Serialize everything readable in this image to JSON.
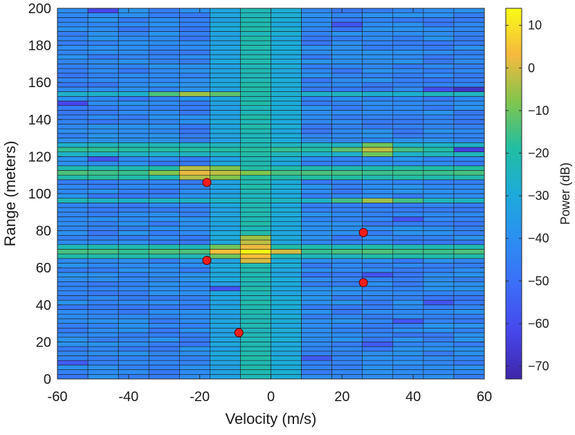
{
  "chart_data": {
    "type": "heatmap",
    "title": "",
    "xlabel": "Velocity (m/s)",
    "ylabel": "Range (meters)",
    "xlim": [
      -60,
      60
    ],
    "ylim": [
      0,
      200
    ],
    "x_ticks": [
      -60,
      -40,
      -20,
      0,
      20,
      40,
      60
    ],
    "y_ticks": [
      0,
      20,
      40,
      60,
      80,
      100,
      120,
      140,
      160,
      180,
      200
    ],
    "velocity_bins": 14,
    "range_bins": 80,
    "colorbar": {
      "label": "Power (dB)",
      "range": [
        -73,
        14
      ],
      "ticks": [
        10,
        0,
        -10,
        -20,
        -30,
        -40,
        -50,
        -60,
        -70
      ]
    },
    "targets": [
      {
        "velocity": -18,
        "range": 106
      },
      {
        "velocity": -18,
        "range": 64
      },
      {
        "velocity": -9,
        "range": 25
      },
      {
        "velocity": 26,
        "range": 79
      },
      {
        "velocity": 26,
        "range": 52
      }
    ],
    "background_level_db": -43,
    "bright_cells": [
      {
        "row": 27,
        "col": 6,
        "db": 14
      },
      {
        "row": 27,
        "col": 5,
        "db": 4
      },
      {
        "row": 27,
        "col": 7,
        "db": 0
      },
      {
        "row": 26,
        "col": 6,
        "db": 4
      },
      {
        "row": 28,
        "col": 6,
        "db": 2
      },
      {
        "row": 25,
        "col": 6,
        "db": 0
      },
      {
        "row": 29,
        "col": 6,
        "db": -2
      },
      {
        "row": 30,
        "col": 6,
        "db": -5
      },
      {
        "row": 26,
        "col": 5,
        "db": -10
      },
      {
        "row": 28,
        "col": 5,
        "db": -10
      },
      {
        "row": 43,
        "col": 4,
        "db": -3
      },
      {
        "row": 44,
        "col": 4,
        "db": 2
      },
      {
        "row": 45,
        "col": 4,
        "db": -3
      },
      {
        "row": 44,
        "col": 5,
        "db": -2
      },
      {
        "row": 43,
        "col": 5,
        "db": -8
      },
      {
        "row": 45,
        "col": 5,
        "db": -8
      },
      {
        "row": 44,
        "col": 6,
        "db": -8
      },
      {
        "row": 44,
        "col": 3,
        "db": -8
      },
      {
        "row": 61,
        "col": 4,
        "db": -5
      },
      {
        "row": 61,
        "col": 5,
        "db": -12
      },
      {
        "row": 61,
        "col": 3,
        "db": -14
      },
      {
        "row": 49,
        "col": 10,
        "db": -2
      },
      {
        "row": 50,
        "col": 10,
        "db": -10
      },
      {
        "row": 48,
        "col": 10,
        "db": -10
      },
      {
        "row": 49,
        "col": 9,
        "db": -12
      },
      {
        "row": 49,
        "col": 11,
        "db": -15
      },
      {
        "row": 38,
        "col": 10,
        "db": -5
      },
      {
        "row": 38,
        "col": 11,
        "db": -15
      },
      {
        "row": 38,
        "col": 9,
        "db": -15
      }
    ],
    "horizontal_bands": [
      {
        "row": 27,
        "db": -15
      },
      {
        "row": 26,
        "db": -22
      },
      {
        "row": 28,
        "db": -22
      },
      {
        "row": 43,
        "db": -20
      },
      {
        "row": 44,
        "db": -15
      },
      {
        "row": 45,
        "db": -20
      },
      {
        "row": 49,
        "db": -18
      },
      {
        "row": 48,
        "db": -25
      },
      {
        "row": 50,
        "db": -25
      },
      {
        "row": 61,
        "db": -26
      },
      {
        "row": 38,
        "db": -24
      }
    ],
    "vertical_bands": [
      {
        "col": 6,
        "db": -22
      },
      {
        "col": 7,
        "db": -30
      },
      {
        "col": 5,
        "db": -32
      }
    ],
    "dark_cells": [
      {
        "row": 59,
        "col": 0,
        "db": -62
      },
      {
        "row": 62,
        "col": 13,
        "db": -68
      },
      {
        "row": 49,
        "col": 13,
        "db": -64
      },
      {
        "row": 79,
        "col": 1,
        "db": -62
      },
      {
        "row": 76,
        "col": 9,
        "db": -58
      },
      {
        "row": 62,
        "col": 12,
        "db": -60
      },
      {
        "row": 47,
        "col": 1,
        "db": -58
      },
      {
        "row": 34,
        "col": 11,
        "db": -58
      },
      {
        "row": 22,
        "col": 10,
        "db": -58
      },
      {
        "row": 19,
        "col": 5,
        "db": -58
      },
      {
        "row": 16,
        "col": 12,
        "db": -58
      },
      {
        "row": 12,
        "col": 11,
        "db": -58
      },
      {
        "row": 7,
        "col": 10,
        "db": -56
      },
      {
        "row": 3,
        "col": 0,
        "db": -56
      },
      {
        "row": 4,
        "col": 8,
        "db": -56
      }
    ]
  }
}
